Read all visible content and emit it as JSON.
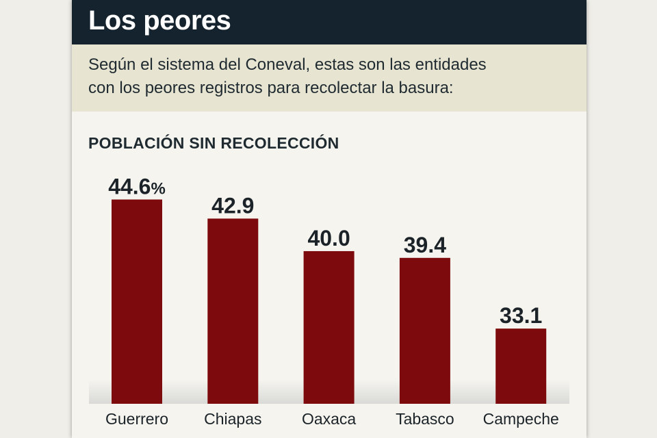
{
  "header": {
    "title": "Los peores"
  },
  "subtitle": {
    "line1": "Según el sistema del Coneval, estas son las entidades",
    "line2": "con los peores registros para recolectar la basura:"
  },
  "chart_data": {
    "type": "bar",
    "title": "POBLACIÓN SIN RECOLECCIÓN",
    "categories": [
      "Guerrero",
      "Chiapas",
      "Oaxaca",
      "Tabasco",
      "Campeche"
    ],
    "values": [
      44.6,
      42.9,
      40.0,
      39.4,
      33.1
    ],
    "value_labels": [
      "44.6",
      "42.9",
      "40.0",
      "39.4",
      "33.1"
    ],
    "unit": "%",
    "xlabel": "",
    "ylabel": "",
    "ylim": [
      26.4,
      46
    ],
    "grid": false,
    "bar_color": "#7d0a0c"
  }
}
